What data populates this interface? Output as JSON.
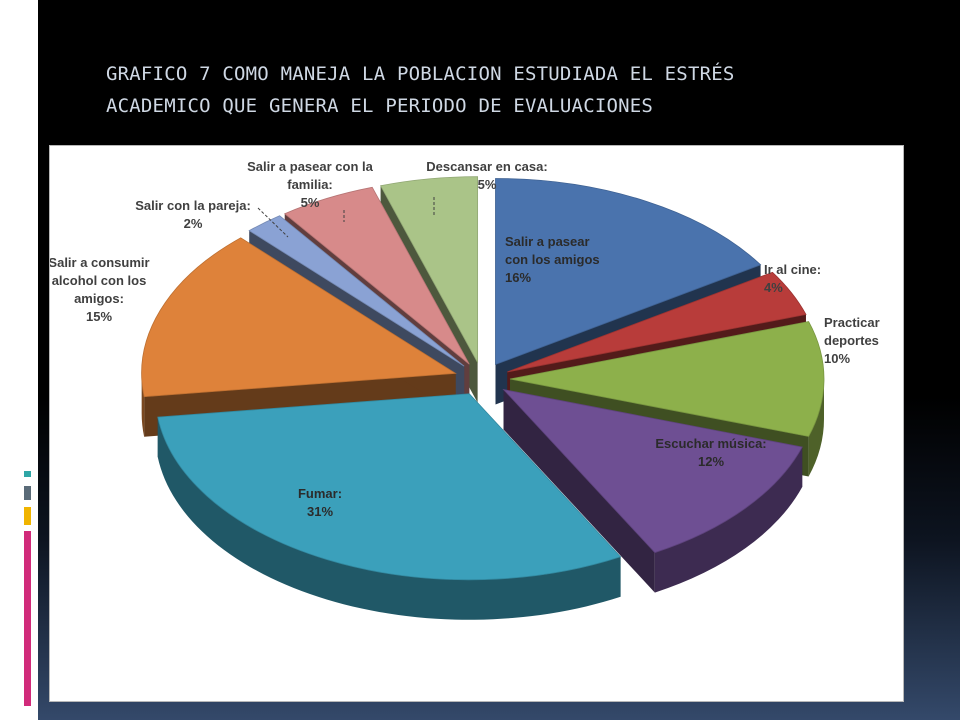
{
  "slide": {
    "title_line1": "GRAFICO 7 COMO MANEJA LA POBLACION ESTUDIADA EL ESTRÉS",
    "title_line2": "ACADEMICO QUE GENERA EL PERIODO DE EVALUACIONES"
  },
  "chart_data": {
    "type": "pie",
    "title": "",
    "show_legend": false,
    "exploded": true,
    "style": "3d",
    "slices": [
      {
        "lines": [
          "Salir a pasear",
          "con los amigos",
          "16%"
        ],
        "value": 16,
        "color": "#4a73ad"
      },
      {
        "lines": [
          "Ir al cine:",
          "4%"
        ],
        "value": 4,
        "color": "#b83c3a"
      },
      {
        "lines": [
          "Practicar",
          "deportes",
          "10%"
        ],
        "value": 10,
        "color": "#8db04b"
      },
      {
        "lines": [
          "Escuchar música:",
          "12%"
        ],
        "value": 12,
        "color": "#6e4f93"
      },
      {
        "lines": [
          "Fumar:",
          "31%"
        ],
        "value": 31,
        "color": "#3ba0bb"
      },
      {
        "lines": [
          "Salir a consumir",
          "alcohol con los",
          "amigos:",
          "15%"
        ],
        "value": 15,
        "color": "#de823a"
      },
      {
        "lines": [
          "Salir con la pareja:",
          "2%"
        ],
        "value": 2,
        "color": "#8aa2d4"
      },
      {
        "lines": [
          "Salir a pasear con la",
          "familia:",
          "5%"
        ],
        "value": 5,
        "color": "#d78a8a"
      },
      {
        "lines": [
          "Descansar en casa:",
          "5%"
        ],
        "value": 5,
        "color": "#aac488"
      }
    ]
  }
}
